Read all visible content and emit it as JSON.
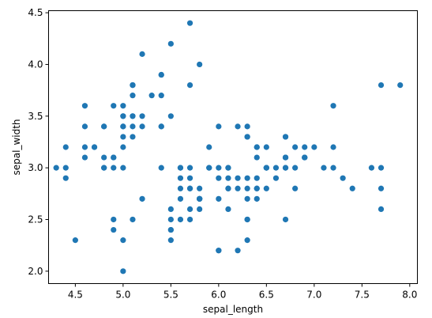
{
  "chart_data": {
    "type": "scatter",
    "title": "",
    "xlabel": "sepal_length",
    "ylabel": "sepal_width",
    "xlim": [
      4.22,
      8.08
    ],
    "ylim": [
      1.88,
      4.52
    ],
    "xticks": [
      "4.5",
      "5.0",
      "5.5",
      "6.0",
      "6.5",
      "7.0",
      "7.5",
      "8.0"
    ],
    "yticks": [
      "2.0",
      "2.5",
      "3.0",
      "3.5",
      "4.0",
      "4.5"
    ],
    "grid": false,
    "marker_color": "#1f77b4",
    "x": [
      5.1,
      4.9,
      4.7,
      4.6,
      5.0,
      5.4,
      4.6,
      5.0,
      4.4,
      4.9,
      5.4,
      4.8,
      4.8,
      4.3,
      5.8,
      5.7,
      5.4,
      5.1,
      5.7,
      5.1,
      5.4,
      5.1,
      4.6,
      5.1,
      4.8,
      5.0,
      5.0,
      5.2,
      5.2,
      4.7,
      4.8,
      5.4,
      5.2,
      5.5,
      4.9,
      5.0,
      5.5,
      4.9,
      4.4,
      5.1,
      5.0,
      4.5,
      4.4,
      5.0,
      5.1,
      4.8,
      5.1,
      4.6,
      5.3,
      5.0,
      7.0,
      6.4,
      6.9,
      5.5,
      6.5,
      5.7,
      6.3,
      4.9,
      6.6,
      5.2,
      5.0,
      5.9,
      6.0,
      6.1,
      5.6,
      6.7,
      5.6,
      5.8,
      6.2,
      5.6,
      5.9,
      6.1,
      6.3,
      6.1,
      6.4,
      6.6,
      6.8,
      6.7,
      6.0,
      5.7,
      5.5,
      5.5,
      5.8,
      6.0,
      5.4,
      6.0,
      6.7,
      6.3,
      5.6,
      5.5,
      5.5,
      6.1,
      5.8,
      5.0,
      5.6,
      5.7,
      5.7,
      6.2,
      5.1,
      5.7,
      6.3,
      5.8,
      7.1,
      6.3,
      6.5,
      7.6,
      4.9,
      7.3,
      6.7,
      7.2,
      6.5,
      6.4,
      6.8,
      5.7,
      5.8,
      6.4,
      6.5,
      7.7,
      7.7,
      6.0,
      6.9,
      5.6,
      7.7,
      6.3,
      6.7,
      7.2,
      6.2,
      6.1,
      6.4,
      7.2,
      7.4,
      7.9,
      6.4,
      6.3,
      6.1,
      7.7,
      6.3,
      6.4,
      6.0,
      6.9,
      6.7,
      6.9,
      5.8,
      6.8,
      6.7,
      6.7,
      6.3,
      6.5,
      6.2,
      5.9
    ],
    "y": [
      3.5,
      3.0,
      3.2,
      3.1,
      3.6,
      3.9,
      3.4,
      3.4,
      2.9,
      3.1,
      3.7,
      3.4,
      3.0,
      3.0,
      4.0,
      4.4,
      3.9,
      3.5,
      3.8,
      3.8,
      3.4,
      3.7,
      3.6,
      3.3,
      3.4,
      3.0,
      3.4,
      3.5,
      3.4,
      3.2,
      3.1,
      3.4,
      4.1,
      4.2,
      3.1,
      3.2,
      3.5,
      3.6,
      3.0,
      3.4,
      3.5,
      2.3,
      3.2,
      3.5,
      3.8,
      3.0,
      3.8,
      3.2,
      3.7,
      3.3,
      3.2,
      3.2,
      3.1,
      2.3,
      2.8,
      2.8,
      3.3,
      2.4,
      2.9,
      2.7,
      2.0,
      3.0,
      2.2,
      2.9,
      2.9,
      3.1,
      3.0,
      2.7,
      2.2,
      2.5,
      3.2,
      2.8,
      2.5,
      2.8,
      2.9,
      3.0,
      2.8,
      3.0,
      2.9,
      2.6,
      2.4,
      2.4,
      2.7,
      2.7,
      3.0,
      3.4,
      3.1,
      2.3,
      3.0,
      2.5,
      2.6,
      3.0,
      2.6,
      2.3,
      2.7,
      3.0,
      2.9,
      2.9,
      2.5,
      2.8,
      3.3,
      2.7,
      3.0,
      2.9,
      3.0,
      3.0,
      2.5,
      2.9,
      2.5,
      3.6,
      3.2,
      2.7,
      3.0,
      2.5,
      2.8,
      3.2,
      3.0,
      3.8,
      2.6,
      2.2,
      3.2,
      2.8,
      2.8,
      2.7,
      3.3,
      3.2,
      2.8,
      3.0,
      2.8,
      3.0,
      2.8,
      3.8,
      2.8,
      2.8,
      2.6,
      3.0,
      3.4,
      3.1,
      3.0,
      3.1,
      3.1,
      3.1,
      2.7,
      3.2,
      3.3,
      3.0,
      2.5,
      3.0,
      3.4,
      3.0
    ]
  }
}
